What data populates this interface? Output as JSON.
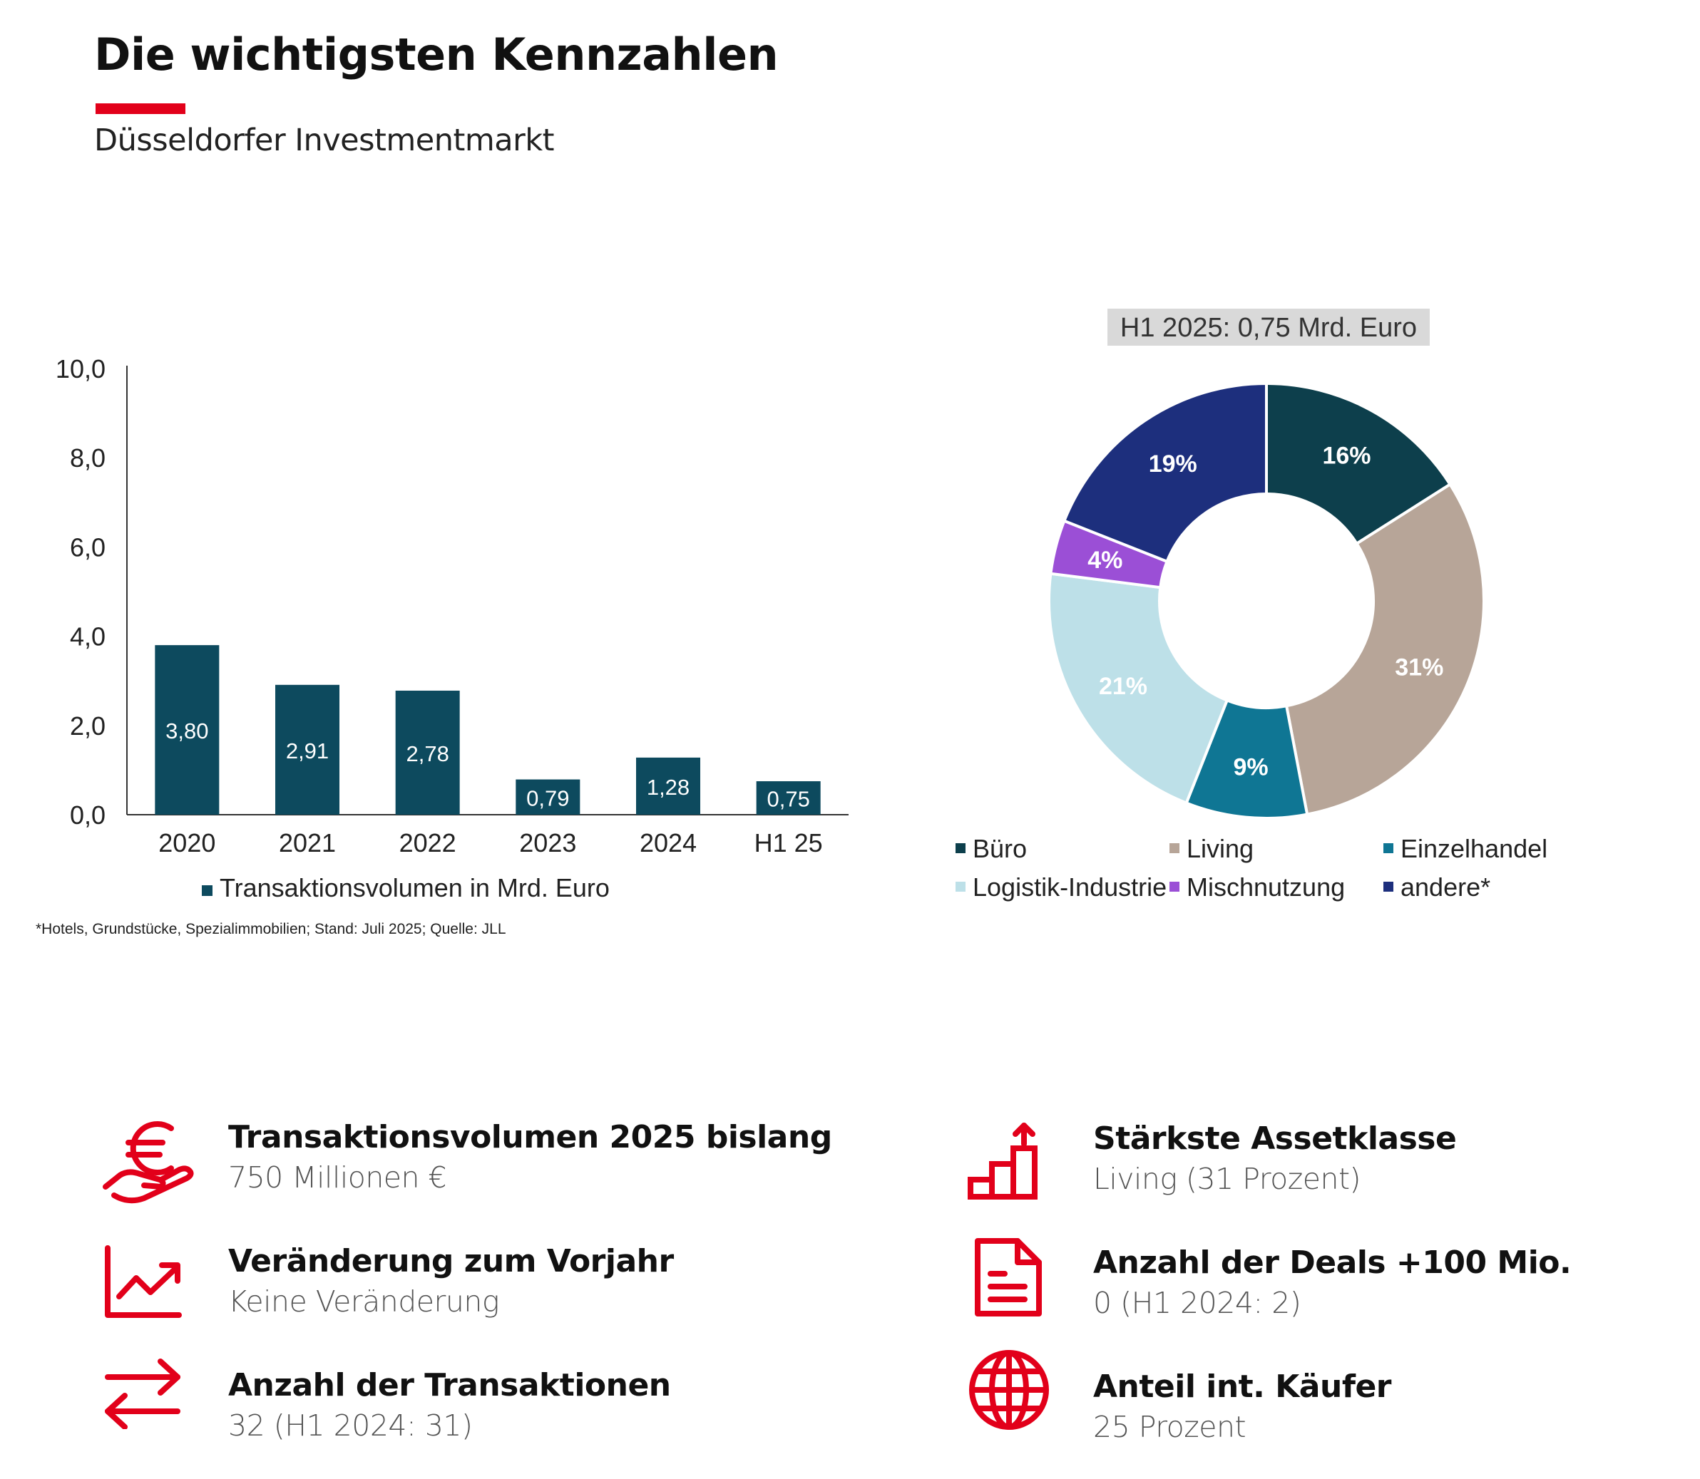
{
  "header": {
    "title": "Die wichtigsten Kennzahlen",
    "subtitle": "Düsseldorfer Investmentmarkt"
  },
  "colors": {
    "accent": "#e2001a",
    "bar": "#0d4a5e"
  },
  "chart_data": [
    {
      "type": "bar",
      "categories": [
        "2020",
        "2021",
        "2022",
        "2023",
        "2024",
        "H1 25"
      ],
      "values": [
        3.8,
        2.91,
        2.78,
        0.79,
        1.28,
        0.75
      ],
      "value_labels": [
        "3,80",
        "2,91",
        "2,78",
        "0,79",
        "1,28",
        "0,75"
      ],
      "ylim": [
        0,
        10
      ],
      "yticks": [
        "0,0",
        "2,0",
        "4,0",
        "6,0",
        "8,0",
        "10,0"
      ],
      "legend": "Transaktionsvolumen in Mrd. Euro",
      "legend_position": "bottom",
      "grid": false
    },
    {
      "type": "pie",
      "donut": true,
      "title": "H1 2025: 0,75 Mrd. Euro",
      "slices": [
        {
          "name": "Büro",
          "value": 16,
          "label": "16%",
          "color": "#0d3f4c"
        },
        {
          "name": "Living",
          "value": 31,
          "label": "31%",
          "color": "#b7a598"
        },
        {
          "name": "Einzelhandel",
          "value": 9,
          "label": "9%",
          "color": "#0f7694"
        },
        {
          "name": "Logistik-Industrie",
          "value": 21,
          "label": "21%",
          "color": "#bde0e8"
        },
        {
          "name": "Mischnutzung",
          "value": 4,
          "label": "4%",
          "color": "#9b4fd6"
        },
        {
          "name": "andere*",
          "value": 19,
          "label": "19%",
          "color": "#1d2f7d"
        }
      ],
      "legend_position": "bottom"
    }
  ],
  "footnote": "*Hotels, Grundstücke, Spezialimmobilien; Stand: Juli 2025; Quelle: JLL",
  "kpis": [
    {
      "icon": "euro-hand-icon",
      "title": "Transaktionsvolumen 2025 bislang",
      "value": "750 Millionen €"
    },
    {
      "icon": "trend-chart-icon",
      "title": "Veränderung zum Vorjahr",
      "value": "Keine Veränderung"
    },
    {
      "icon": "exchange-arrows-icon",
      "title": "Anzahl der Transaktionen",
      "value": "32 (H1 2024: 31)"
    },
    {
      "icon": "rising-steps-icon",
      "title": "Stärkste Assetklasse",
      "value": "Living (31 Prozent)"
    },
    {
      "icon": "document-icon",
      "title": "Anzahl der Deals +100 Mio.",
      "value": "0 (H1 2024: 2)"
    },
    {
      "icon": "globe-icon",
      "title": "Anteil int. Käufer",
      "value": "25 Prozent"
    }
  ]
}
